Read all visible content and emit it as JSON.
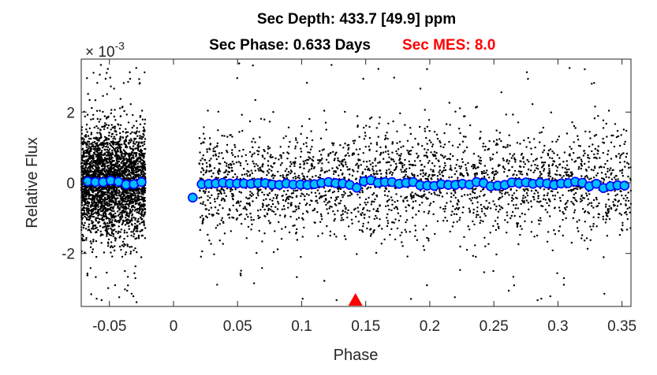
{
  "chart_data": {
    "type": "scatter",
    "title_line1": "Sec Depth: 433.7 [49.9] ppm",
    "title_line2": "Sec Phase: 0.633 Days",
    "title_mes": "Sec MES: 8.0",
    "xlabel": "Phase",
    "ylabel": "Relative Flux",
    "y_exponent": "× 10^-3",
    "xlim": [
      -0.072,
      0.357
    ],
    "ylim": [
      -3.5,
      3.5
    ],
    "x_ticks": [
      -0.05,
      0,
      0.05,
      0.1,
      0.15,
      0.2,
      0.25,
      0.3,
      0.35
    ],
    "x_tick_labels": [
      "-0.05",
      "0",
      "0.05",
      "0.1",
      "0.15",
      "0.2",
      "0.25",
      "0.3",
      "0.35"
    ],
    "y_ticks": [
      -2,
      0,
      2
    ],
    "y_tick_labels": [
      "-2",
      "0",
      "2"
    ],
    "grid": false,
    "raw_data_note": "dense cloud of black points, roughly x in [-0.072,-0.022] and [0.02,0.357], y spread about ±1.5e-3 with outliers to ±3.5e-3",
    "marker": {
      "name": "secondary-eclipse-marker",
      "x": 0.142,
      "y": -3.5,
      "color": "#ff0000"
    },
    "series": [
      {
        "name": "",
        "color": "#00bfff",
        "edge_color": "#0000ff",
        "x": [
          -0.067,
          -0.061,
          -0.055,
          -0.049,
          -0.043,
          -0.037,
          -0.031,
          -0.025,
          0.015,
          0.022,
          0.0275,
          0.033,
          0.0385,
          0.044,
          0.0495,
          0.055,
          0.0605,
          0.066,
          0.0715,
          0.077,
          0.0825,
          0.088,
          0.0935,
          0.099,
          0.1045,
          0.11,
          0.1155,
          0.121,
          0.1265,
          0.132,
          0.1375,
          0.143,
          0.1485,
          0.154,
          0.1595,
          0.165,
          0.1705,
          0.176,
          0.1815,
          0.187,
          0.1925,
          0.198,
          0.2035,
          0.209,
          0.2145,
          0.22,
          0.2255,
          0.231,
          0.2365,
          0.242,
          0.2475,
          0.253,
          0.2585,
          0.264,
          0.2695,
          0.275,
          0.2805,
          0.286,
          0.2915,
          0.297,
          0.3025,
          0.308,
          0.3135,
          0.319,
          0.3245,
          0.33,
          0.3355,
          0.341,
          0.3465,
          0.352
        ],
        "y": [
          0.04,
          0.02,
          0.02,
          0.06,
          0.03,
          -0.05,
          -0.04,
          0.02,
          -0.42,
          -0.04,
          -0.03,
          -0.02,
          0.0,
          -0.02,
          -0.02,
          -0.02,
          -0.03,
          -0.01,
          -0.01,
          -0.05,
          -0.06,
          -0.02,
          -0.05,
          -0.05,
          -0.06,
          -0.04,
          0.0,
          0.02,
          -0.01,
          -0.02,
          -0.06,
          -0.14,
          0.04,
          0.07,
          0.0,
          0.02,
          0.02,
          -0.03,
          0.0,
          0.02,
          -0.07,
          -0.08,
          -0.09,
          -0.04,
          -0.06,
          -0.06,
          -0.03,
          -0.05,
          0.02,
          -0.01,
          -0.1,
          -0.08,
          -0.06,
          0.01,
          -0.01,
          0.01,
          -0.03,
          0.0,
          -0.02,
          -0.06,
          -0.02,
          -0.01,
          0.03,
          0.0,
          -0.1,
          -0.03,
          -0.15,
          -0.1,
          -0.07,
          -0.08
        ]
      }
    ]
  }
}
